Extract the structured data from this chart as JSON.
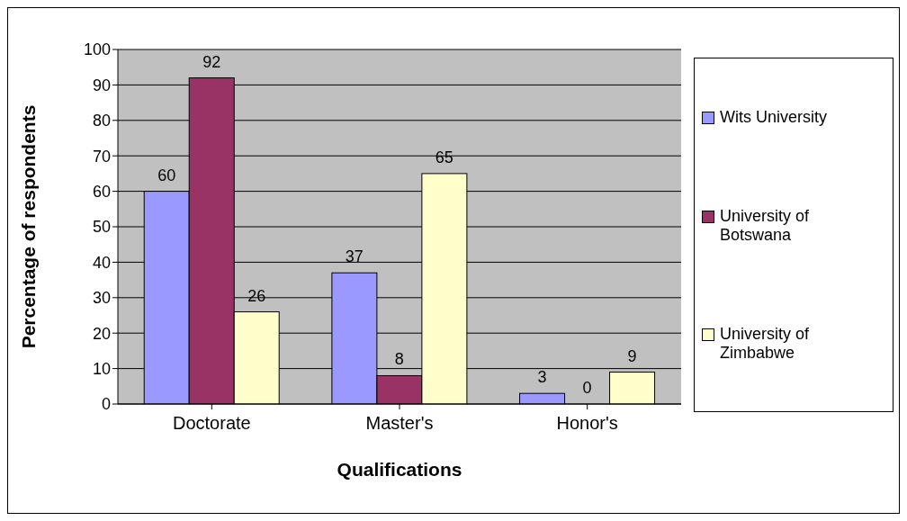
{
  "chart_data": {
    "type": "bar",
    "xlabel": "Qualifications",
    "ylabel": "Percentage of respondents",
    "categories": [
      "Doctorate",
      "Master's",
      "Honor's"
    ],
    "series": [
      {
        "name": "Wits University",
        "color": "#9999ff",
        "values": [
          60,
          37,
          3
        ]
      },
      {
        "name": "University of Botswana",
        "color": "#993366",
        "values": [
          92,
          8,
          0
        ]
      },
      {
        "name": "University of Zimbabwe",
        "color": "#ffffcc",
        "values": [
          26,
          65,
          9
        ]
      }
    ],
    "ylim": [
      0,
      100
    ],
    "yticks": [
      0,
      10,
      20,
      30,
      40,
      50,
      60,
      70,
      80,
      90,
      100
    ],
    "grid": "y",
    "legend": "right",
    "data_labels": true
  }
}
